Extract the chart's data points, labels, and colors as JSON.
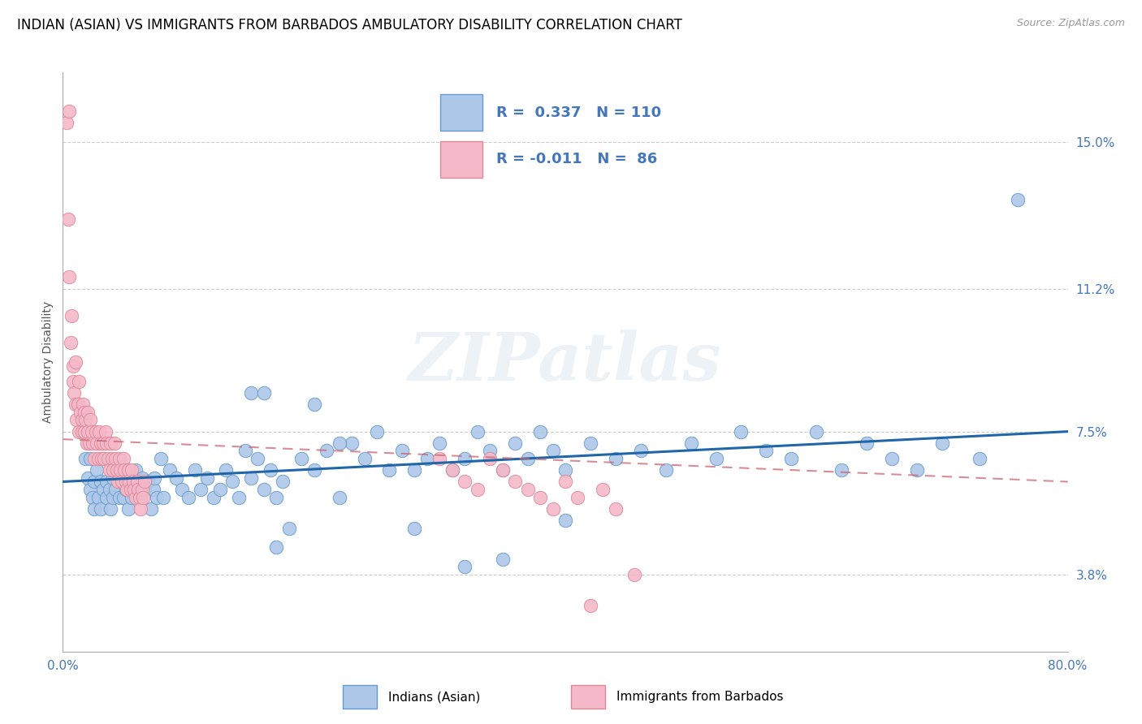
{
  "title": "INDIAN (ASIAN) VS IMMIGRANTS FROM BARBADOS AMBULATORY DISABILITY CORRELATION CHART",
  "source_text": "Source: ZipAtlas.com",
  "ylabel": "Ambulatory Disability",
  "xmin": 0.0,
  "xmax": 0.8,
  "ymin": 0.018,
  "ymax": 0.168,
  "yticks": [
    0.038,
    0.075,
    0.112,
    0.15
  ],
  "ytick_labels": [
    "3.8%",
    "7.5%",
    "11.2%",
    "15.0%"
  ],
  "xticks": [
    0.0,
    0.1,
    0.2,
    0.3,
    0.4,
    0.5,
    0.6,
    0.7,
    0.8
  ],
  "xtick_labels": [
    "0.0%",
    "",
    "",
    "",
    "",
    "",
    "",
    "",
    "80.0%"
  ],
  "R_blue": 0.337,
  "N_blue": 110,
  "R_pink": -0.011,
  "N_pink": 86,
  "color_blue": "#adc8e8",
  "color_blue_edge": "#6699cc",
  "color_blue_line": "#2266aa",
  "color_pink": "#f4b8c8",
  "color_pink_edge": "#dd8899",
  "color_pink_line": "#cc6677",
  "color_tick_blue": "#4477bb",
  "title_fontsize": 12,
  "axis_label_fontsize": 10,
  "tick_fontsize": 11,
  "legend_fontsize": 13,
  "blue_line_y0": 0.062,
  "blue_line_y1": 0.075,
  "pink_line_y0": 0.073,
  "pink_line_y1": 0.062,
  "blue_scatter_x": [
    0.018,
    0.02,
    0.022,
    0.022,
    0.024,
    0.025,
    0.025,
    0.027,
    0.028,
    0.03,
    0.03,
    0.032,
    0.033,
    0.035,
    0.035,
    0.037,
    0.038,
    0.04,
    0.04,
    0.042,
    0.043,
    0.045,
    0.045,
    0.047,
    0.048,
    0.05,
    0.052,
    0.053,
    0.055,
    0.057,
    0.058,
    0.06,
    0.062,
    0.063,
    0.065,
    0.068,
    0.07,
    0.072,
    0.073,
    0.075,
    0.078,
    0.08,
    0.085,
    0.09,
    0.095,
    0.1,
    0.105,
    0.11,
    0.115,
    0.12,
    0.125,
    0.13,
    0.135,
    0.14,
    0.145,
    0.15,
    0.155,
    0.16,
    0.165,
    0.17,
    0.175,
    0.18,
    0.19,
    0.2,
    0.21,
    0.22,
    0.23,
    0.24,
    0.25,
    0.26,
    0.27,
    0.28,
    0.29,
    0.3,
    0.31,
    0.32,
    0.33,
    0.34,
    0.35,
    0.36,
    0.37,
    0.38,
    0.39,
    0.4,
    0.42,
    0.44,
    0.46,
    0.48,
    0.5,
    0.52,
    0.54,
    0.56,
    0.58,
    0.6,
    0.62,
    0.64,
    0.66,
    0.68,
    0.7,
    0.73,
    0.15,
    0.16,
    0.17,
    0.2,
    0.22,
    0.28,
    0.32,
    0.35,
    0.4,
    0.76
  ],
  "blue_scatter_y": [
    0.068,
    0.063,
    0.06,
    0.068,
    0.058,
    0.062,
    0.055,
    0.065,
    0.058,
    0.062,
    0.055,
    0.06,
    0.068,
    0.058,
    0.062,
    0.06,
    0.055,
    0.063,
    0.058,
    0.06,
    0.065,
    0.058,
    0.062,
    0.063,
    0.058,
    0.06,
    0.055,
    0.062,
    0.058,
    0.06,
    0.065,
    0.062,
    0.058,
    0.063,
    0.06,
    0.062,
    0.055,
    0.06,
    0.063,
    0.058,
    0.068,
    0.058,
    0.065,
    0.063,
    0.06,
    0.058,
    0.065,
    0.06,
    0.063,
    0.058,
    0.06,
    0.065,
    0.062,
    0.058,
    0.07,
    0.063,
    0.068,
    0.06,
    0.065,
    0.058,
    0.062,
    0.05,
    0.068,
    0.065,
    0.07,
    0.058,
    0.072,
    0.068,
    0.075,
    0.065,
    0.07,
    0.065,
    0.068,
    0.072,
    0.065,
    0.068,
    0.075,
    0.07,
    0.065,
    0.072,
    0.068,
    0.075,
    0.07,
    0.065,
    0.072,
    0.068,
    0.07,
    0.065,
    0.072,
    0.068,
    0.075,
    0.07,
    0.068,
    0.075,
    0.065,
    0.072,
    0.068,
    0.065,
    0.072,
    0.068,
    0.085,
    0.085,
    0.045,
    0.082,
    0.072,
    0.05,
    0.04,
    0.042,
    0.052,
    0.135
  ],
  "pink_scatter_x": [
    0.003,
    0.004,
    0.005,
    0.005,
    0.006,
    0.007,
    0.008,
    0.008,
    0.009,
    0.01,
    0.01,
    0.011,
    0.012,
    0.013,
    0.013,
    0.014,
    0.015,
    0.015,
    0.016,
    0.017,
    0.017,
    0.018,
    0.019,
    0.02,
    0.02,
    0.021,
    0.022,
    0.023,
    0.024,
    0.025,
    0.026,
    0.027,
    0.028,
    0.029,
    0.03,
    0.031,
    0.032,
    0.033,
    0.034,
    0.035,
    0.036,
    0.037,
    0.038,
    0.039,
    0.04,
    0.041,
    0.042,
    0.043,
    0.044,
    0.045,
    0.046,
    0.047,
    0.048,
    0.049,
    0.05,
    0.051,
    0.052,
    0.053,
    0.054,
    0.055,
    0.056,
    0.057,
    0.058,
    0.059,
    0.06,
    0.061,
    0.062,
    0.063,
    0.064,
    0.065,
    0.3,
    0.31,
    0.32,
    0.33,
    0.34,
    0.35,
    0.36,
    0.37,
    0.38,
    0.39,
    0.4,
    0.41,
    0.42,
    0.43,
    0.44,
    0.455
  ],
  "pink_scatter_y": [
    0.155,
    0.13,
    0.158,
    0.115,
    0.098,
    0.105,
    0.092,
    0.088,
    0.085,
    0.082,
    0.093,
    0.078,
    0.082,
    0.075,
    0.088,
    0.08,
    0.075,
    0.078,
    0.082,
    0.075,
    0.08,
    0.078,
    0.072,
    0.075,
    0.08,
    0.072,
    0.078,
    0.075,
    0.072,
    0.068,
    0.075,
    0.072,
    0.068,
    0.075,
    0.072,
    0.068,
    0.072,
    0.068,
    0.075,
    0.072,
    0.068,
    0.065,
    0.072,
    0.068,
    0.065,
    0.072,
    0.068,
    0.065,
    0.062,
    0.068,
    0.065,
    0.062,
    0.068,
    0.065,
    0.062,
    0.06,
    0.065,
    0.062,
    0.06,
    0.065,
    0.062,
    0.06,
    0.058,
    0.062,
    0.06,
    0.058,
    0.055,
    0.06,
    0.058,
    0.062,
    0.068,
    0.065,
    0.062,
    0.06,
    0.068,
    0.065,
    0.062,
    0.06,
    0.058,
    0.055,
    0.062,
    0.058,
    0.03,
    0.06,
    0.055,
    0.038
  ]
}
